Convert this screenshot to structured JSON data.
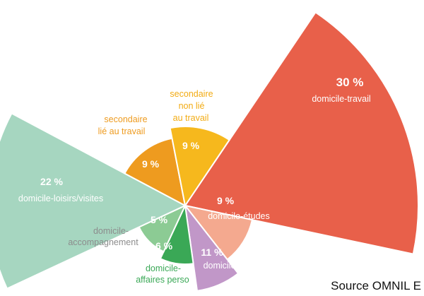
{
  "chart_data": {
    "type": "pie",
    "subtype": "radial-rose",
    "title": "",
    "slices": [
      {
        "percent": "30 %",
        "value": 30,
        "label_lines": [
          "domicile-travail"
        ],
        "color": "#e8604a",
        "label_placement": "inside"
      },
      {
        "percent": "9 %",
        "value": 9,
        "label_lines": [
          "domicile-études"
        ],
        "color": "#f4a98f",
        "label_placement": "inside"
      },
      {
        "percent": "11 %",
        "value": 11,
        "label_lines": [
          "domicile-achats"
        ],
        "color": "#c197c8",
        "label_placement": "inside"
      },
      {
        "percent": "6 %",
        "value": 6,
        "label_lines": [
          "domicile-",
          "affaires perso"
        ],
        "color": "#3aa856",
        "label_placement": "outside"
      },
      {
        "percent": "5 %",
        "value": 5,
        "label_lines": [
          "domicile-",
          "accompagnement"
        ],
        "color": "#8ccb94",
        "label_placement": "outside"
      },
      {
        "percent": "22 %",
        "value": 22,
        "label_lines": [
          "domicile-loisirs/visites"
        ],
        "color": "#a6d6c0",
        "label_placement": "inside"
      },
      {
        "percent": "9 %",
        "value": 9,
        "label_lines": [
          "secondaire",
          "lié au travail"
        ],
        "color": "#ee9b1f",
        "label_placement": "outside"
      },
      {
        "percent": "9 %",
        "value": 9,
        "label_lines": [
          "secondaire",
          "non lié",
          "au travail"
        ],
        "color": "#f6b81d",
        "label_placement": "outside"
      }
    ]
  },
  "source": "Source OMNIL E"
}
